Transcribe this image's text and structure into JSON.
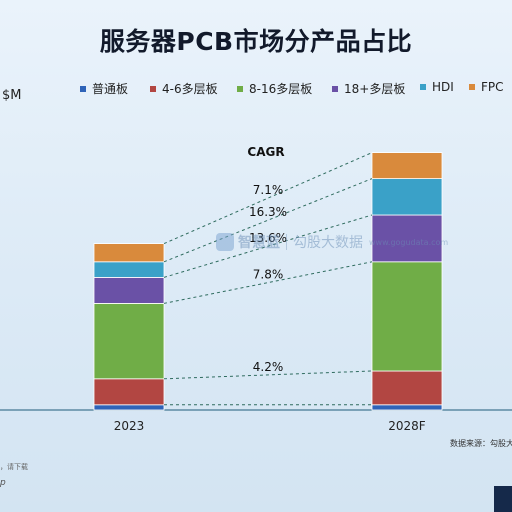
{
  "title": "服务器PCB市场分产品占比",
  "unit_label": "$M",
  "source_note": "数据来源：勾股大",
  "footer_note": "，请下载",
  "footer_brand": "p",
  "watermark": {
    "name": "智慧蓝",
    "brand": "勾股大数据",
    "site": "www.gogudata.com"
  },
  "colors": {
    "background": "#dceaf6",
    "baseline": "#1f5b7a",
    "connector": "#2f6c5f"
  },
  "chart_data": {
    "type": "bar",
    "stacked": true,
    "title": "服务器PCB市场分产品占比",
    "ylabel": "$M",
    "ylim": [
      0,
      100
    ],
    "grid": false,
    "legend_position": "top",
    "categories": [
      "2023",
      "2028F"
    ],
    "series": [
      {
        "name": "普通板",
        "color": "#2e63b8",
        "values": [
          2,
          2
        ]
      },
      {
        "name": "4-6多层板",
        "color": "#b24642",
        "values": [
          10,
          13
        ]
      },
      {
        "name": "8-16多层板",
        "color": "#70ad47",
        "values": [
          29,
          42
        ]
      },
      {
        "name": "18+多层板",
        "color": "#6a51a6",
        "values": [
          10,
          18
        ]
      },
      {
        "name": "HDI",
        "color": "#3aa1c8",
        "values": [
          6,
          14
        ]
      },
      {
        "name": "FPC",
        "color": "#d98a3c",
        "values": [
          7,
          10
        ]
      }
    ],
    "cagr_title": "CAGR",
    "cagr": [
      {
        "series": "FPC",
        "value": "7.1%"
      },
      {
        "series": "HDI",
        "value": "16.3%"
      },
      {
        "series": "18+多层板",
        "value": "13.6%"
      },
      {
        "series": "8-16多层板",
        "value": "7.8%"
      },
      {
        "series": "4-6多层板",
        "value": "4.2%"
      }
    ]
  }
}
